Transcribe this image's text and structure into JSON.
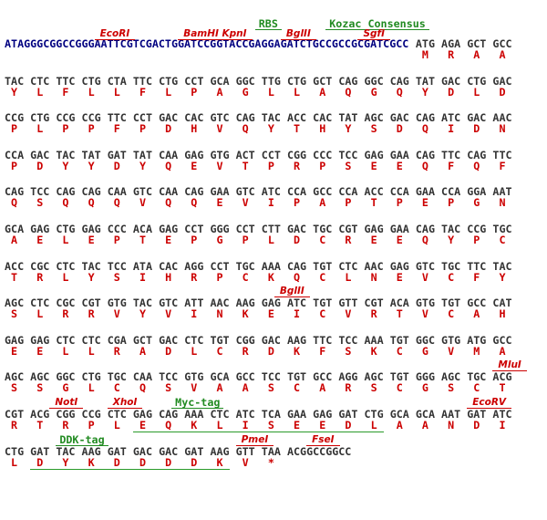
{
  "lines": [
    {
      "prefix": "ATAGGGCGGCCGGGAATTCGTCGACTGGATCCGGTACCGAGGAGATCTGCCGCCGCGATCGCC",
      "codons": [
        "ATG",
        "AGA",
        "GCT",
        "GCC"
      ],
      "aminoacids": [
        "M",
        "R",
        "A",
        "A"
      ],
      "annotations": [
        {
          "label": "RBS",
          "color": "#228b22"
        },
        {
          "label": "Kozac Consensus",
          "color": "#228b22"
        },
        {
          "label": "EcoRI",
          "color": "#cc0000"
        },
        {
          "label": "BamHI",
          "color": "#cc0000"
        },
        {
          "label": "KpnI",
          "color": "#cc0000"
        },
        {
          "label": "BglII",
          "color": "#cc0000"
        },
        {
          "label": "SgfI",
          "color": "#cc0000"
        }
      ]
    },
    {
      "codons": [
        "TAC",
        "CTC",
        "TTC",
        "CTG",
        "CTA",
        "TTC",
        "CTG",
        "CCT",
        "GCA",
        "GGC",
        "TTG",
        "CTG",
        "GCT",
        "CAG",
        "GGC",
        "CAG",
        "TAT",
        "GAC",
        "CTG",
        "GAC"
      ],
      "aminoacids": [
        "Y",
        "L",
        "F",
        "L",
        "L",
        "F",
        "L",
        "P",
        "A",
        "G",
        "L",
        "L",
        "A",
        "Q",
        "G",
        "Q",
        "Y",
        "D",
        "L",
        "D"
      ]
    },
    {
      "codons": [
        "CCG",
        "CTG",
        "CCG",
        "CCG",
        "TTC",
        "CCT",
        "GAC",
        "CAC",
        "GTC",
        "CAG",
        "TAC",
        "ACC",
        "CAC",
        "TAT",
        "AGC",
        "GAC",
        "CAG",
        "ATC",
        "GAC",
        "AAC"
      ],
      "aminoacids": [
        "P",
        "L",
        "P",
        "P",
        "F",
        "P",
        "D",
        "H",
        "V",
        "Q",
        "Y",
        "T",
        "H",
        "Y",
        "S",
        "D",
        "Q",
        "I",
        "D",
        "N"
      ]
    },
    {
      "codons": [
        "CCA",
        "GAC",
        "TAC",
        "TAT",
        "GAT",
        "TAT",
        "CAA",
        "GAG",
        "GTG",
        "ACT",
        "CCT",
        "CGG",
        "CCC",
        "TCC",
        "GAG",
        "GAA",
        "CAG",
        "TTC",
        "CAG",
        "TTC"
      ],
      "aminoacids": [
        "P",
        "D",
        "Y",
        "Y",
        "D",
        "Y",
        "Q",
        "E",
        "V",
        "T",
        "P",
        "R",
        "P",
        "S",
        "E",
        "E",
        "Q",
        "F",
        "Q",
        "F"
      ]
    },
    {
      "codons": [
        "CAG",
        "TCC",
        "CAG",
        "CAG",
        "CAA",
        "GTC",
        "CAA",
        "CAG",
        "GAA",
        "GTC",
        "ATC",
        "CCA",
        "GCC",
        "CCA",
        "ACC",
        "CCA",
        "GAA",
        "CCA",
        "GGA",
        "AAT"
      ],
      "aminoacids": [
        "Q",
        "S",
        "Q",
        "Q",
        "Q",
        "V",
        "Q",
        "Q",
        "E",
        "V",
        "I",
        "P",
        "A",
        "P",
        "T",
        "P",
        "E",
        "P",
        "G",
        "N"
      ]
    },
    {
      "codons": [
        "GCA",
        "GAG",
        "CTG",
        "GAG",
        "CCC",
        "ACA",
        "GAG",
        "CCT",
        "GGG",
        "CCT",
        "CTT",
        "GAC",
        "TGC",
        "CGT",
        "GAG",
        "GAA",
        "CAG",
        "TAC",
        "CCG",
        "TGC"
      ],
      "aminoacids": [
        "A",
        "E",
        "L",
        "E",
        "P",
        "T",
        "E",
        "P",
        "G",
        "P",
        "L",
        "D",
        "C",
        "R",
        "E",
        "E",
        "Q",
        "Y",
        "P",
        "C"
      ]
    },
    {
      "codons": [
        "ACC",
        "CGC",
        "CTC",
        "TAC",
        "TCC",
        "ATA",
        "CAC",
        "AGG",
        "CCT",
        "TGC",
        "AAA",
        "CAG",
        "TGT",
        "CTC",
        "AAC",
        "GAG",
        "GTC",
        "TGC",
        "TTC",
        "TAC"
      ],
      "aminoacids": [
        "T",
        "R",
        "L",
        "Y",
        "S",
        "I",
        "H",
        "R",
        "P",
        "C",
        "K",
        "Q",
        "C",
        "L",
        "N",
        "E",
        "V",
        "C",
        "F",
        "Y"
      ]
    },
    {
      "codons": [
        "AGC",
        "CTC",
        "CGC",
        "CGT",
        "GTG",
        "TAC",
        "GTC",
        "ATT",
        "AAC",
        "AAG",
        "GAG",
        "ATC",
        "TGT",
        "GTT",
        "CGT",
        "ACA",
        "GTG",
        "TGT",
        "GCC",
        "CAT"
      ],
      "aminoacids": [
        "S",
        "L",
        "R",
        "R",
        "V",
        "Y",
        "V",
        "I",
        "N",
        "K",
        "E",
        "I",
        "C",
        "V",
        "R",
        "T",
        "V",
        "C",
        "A",
        "H"
      ],
      "annotations": [
        {
          "label": "BglII",
          "color": "#cc0000"
        }
      ]
    },
    {
      "codons": [
        "GAG",
        "GAG",
        "CTC",
        "CTC",
        "CGA",
        "GCT",
        "GAC",
        "CTC",
        "TGT",
        "CGG",
        "GAC",
        "AAG",
        "TTC",
        "TCC",
        "AAA",
        "TGT",
        "GGC",
        "GTG",
        "ATG",
        "GCC"
      ],
      "aminoacids": [
        "E",
        "E",
        "L",
        "L",
        "R",
        "A",
        "D",
        "L",
        "C",
        "R",
        "D",
        "K",
        "F",
        "S",
        "K",
        "C",
        "G",
        "V",
        "M",
        "A"
      ]
    },
    {
      "codons": [
        "AGC",
        "AGC",
        "GGC",
        "CTG",
        "TGC",
        "CAA",
        "TCC",
        "GTG",
        "GCA",
        "GCC",
        "TCC",
        "TGT",
        "GCC",
        "AGG",
        "AGC",
        "TGT",
        "GGG",
        "AGC",
        "TGC",
        "ACG"
      ],
      "aminoacids": [
        "S",
        "S",
        "G",
        "L",
        "C",
        "Q",
        "S",
        "V",
        "A",
        "A",
        "S",
        "C",
        "A",
        "R",
        "S",
        "C",
        "G",
        "S",
        "C",
        "T"
      ],
      "annotations": [
        {
          "label": "MluI",
          "color": "#cc0000"
        }
      ]
    },
    {
      "codons": [
        "CGT",
        "ACG",
        "CGG",
        "CCG",
        "CTC",
        "GAG",
        "CAG",
        "AAA",
        "CTC",
        "ATC",
        "TCA",
        "GAA",
        "GAG",
        "GAT",
        "CTG",
        "GCA",
        "GCA",
        "AAT",
        "GAT",
        "ATC"
      ],
      "aminoacids": [
        "R",
        "T",
        "R",
        "P",
        "L",
        "E",
        "Q",
        "K",
        "L",
        "I",
        "S",
        "E",
        "E",
        "D",
        "L",
        "A",
        "A",
        "N",
        "D",
        "I"
      ],
      "annotations": [
        {
          "label": "NotI",
          "color": "#cc0000"
        },
        {
          "label": "XhoI",
          "color": "#cc0000"
        },
        {
          "label": "Myc-tag",
          "color": "#228b22"
        },
        {
          "label": "EcoRV",
          "color": "#cc0000"
        }
      ]
    },
    {
      "codons": [
        "CTG",
        "GAT",
        "TAC",
        "AAG",
        "GAT",
        "GAC",
        "GAC",
        "GAT",
        "AAG",
        "GTT",
        "TAA"
      ],
      "suffix": "ACGGCCGGCC",
      "aminoacids": [
        "L",
        "D",
        "Y",
        "K",
        "D",
        "D",
        "D",
        "D",
        "K",
        "V",
        "*"
      ],
      "annotations": [
        {
          "label": "DDK-tag",
          "color": "#228b22"
        },
        {
          "label": "PmeI",
          "color": "#cc0000"
        },
        {
          "label": "FseI",
          "color": "#cc0000"
        }
      ]
    }
  ]
}
